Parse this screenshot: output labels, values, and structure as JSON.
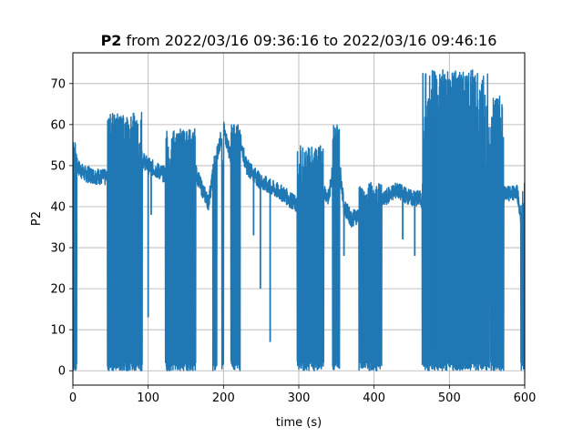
{
  "chart_data": {
    "type": "line",
    "title": {
      "bold": "P2",
      "rest": " from 2022/03/16 09:36:16 to 2022/03/16 09:46:16"
    },
    "xlabel": "time (s)",
    "ylabel": "P2",
    "xlim": [
      0,
      600
    ],
    "ylim": [
      -3.5,
      77.5
    ],
    "xticks": [
      0,
      100,
      200,
      300,
      400,
      500,
      600
    ],
    "yticks": [
      0,
      10,
      20,
      30,
      40,
      50,
      60,
      70
    ],
    "grid": true,
    "series_color": "#1f77b4",
    "series": [
      {
        "trend_x": [
          0,
          5,
          15,
          30,
          45,
          55,
          60,
          70,
          80,
          90,
          100,
          110,
          120,
          130,
          140,
          150,
          160,
          170,
          180,
          190,
          200,
          210,
          220,
          230,
          240,
          250,
          260,
          270,
          280,
          290,
          300,
          310,
          320,
          330,
          340,
          350,
          360,
          370,
          380,
          390,
          400,
          410,
          420,
          430,
          440,
          450,
          460,
          470,
          480,
          490,
          500,
          510,
          520,
          530,
          540,
          550,
          560,
          570,
          580,
          590,
          600
        ],
        "trend_y": [
          55,
          50,
          48,
          47.5,
          47,
          62,
          60,
          56,
          54,
          52,
          50,
          49,
          48,
          47,
          58,
          54,
          50,
          45,
          41,
          52,
          59,
          52,
          58,
          50,
          48,
          46,
          45,
          44,
          43,
          41.5,
          40,
          44,
          50,
          45,
          42,
          57,
          40,
          37,
          38,
          39,
          40,
          41,
          43,
          44,
          43,
          42,
          42,
          41,
          63,
          63,
          64,
          66,
          62,
          52,
          48,
          44,
          65,
          43,
          43,
          44,
          30
        ],
        "bursts": [
          {
            "from": 0,
            "to": 5,
            "min": 0,
            "max": 56
          },
          {
            "from": 46,
            "to": 92,
            "min": 0,
            "max": 63
          },
          {
            "from": 123,
            "to": 163,
            "min": 0,
            "max": 59
          },
          {
            "from": 186,
            "to": 191,
            "min": 0,
            "max": 53
          },
          {
            "from": 198,
            "to": 200,
            "min": 0,
            "max": 52
          },
          {
            "from": 210,
            "to": 222,
            "min": 0,
            "max": 60
          },
          {
            "from": 298,
            "to": 333,
            "min": 0,
            "max": 55
          },
          {
            "from": 345,
            "to": 354,
            "min": 0,
            "max": 60
          },
          {
            "from": 380,
            "to": 410,
            "min": 0,
            "max": 46
          },
          {
            "from": 464,
            "to": 553,
            "min": 0,
            "max": 73.5
          },
          {
            "from": 555,
            "to": 572,
            "min": 0,
            "max": 67
          },
          {
            "from": 595,
            "to": 600,
            "min": 0,
            "max": 46
          }
        ],
        "spikes_down": [
          {
            "x": 100,
            "y": 13
          },
          {
            "x": 104,
            "y": 38
          },
          {
            "x": 240,
            "y": 33
          },
          {
            "x": 249,
            "y": 20
          },
          {
            "x": 262,
            "y": 7
          },
          {
            "x": 360,
            "y": 28
          },
          {
            "x": 438,
            "y": 32
          },
          {
            "x": 454,
            "y": 28
          },
          {
            "x": 484,
            "y": 5
          }
        ]
      }
    ]
  }
}
